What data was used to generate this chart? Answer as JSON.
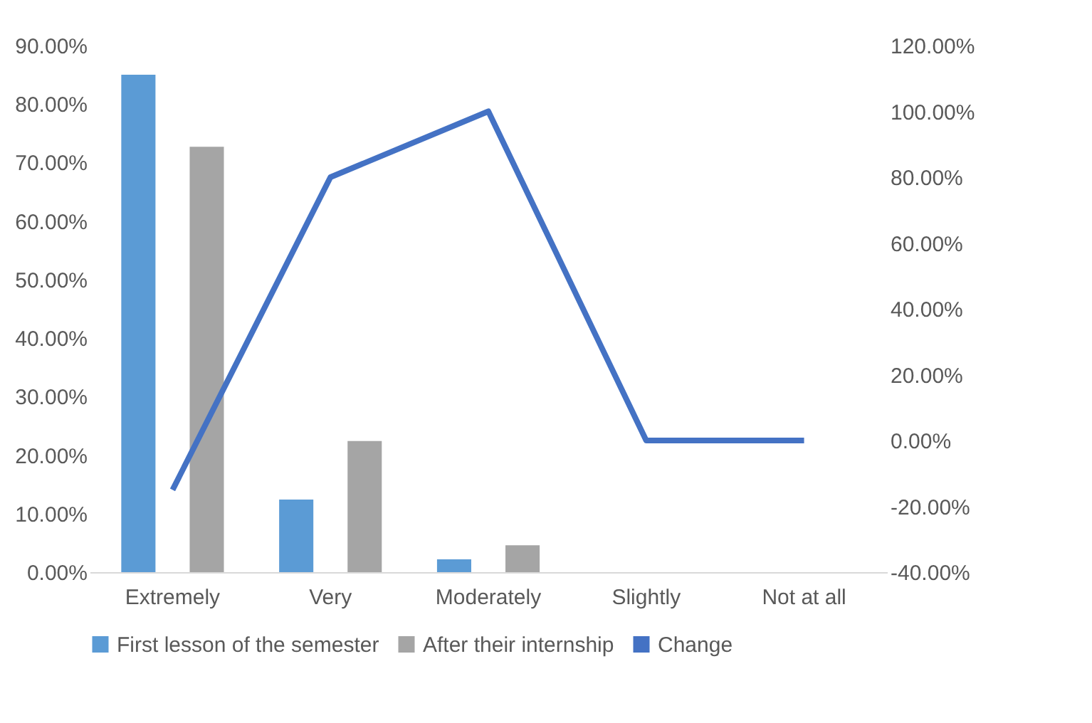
{
  "chart_data": {
    "type": "bar",
    "categories": [
      "Extremely",
      "Very",
      "Moderately",
      "Slightly",
      "Not at all"
    ],
    "series": [
      {
        "name": "First lesson of the semester",
        "color": "#5b9bd5",
        "values": [
          85,
          12.4,
          2.2,
          0,
          0
        ]
      },
      {
        "name": "After their internship",
        "color": "#a5a5a5",
        "values": [
          72.7,
          22.4,
          4.6,
          0,
          0
        ]
      },
      {
        "name": "Change",
        "color": "#4472c4",
        "type": "line",
        "axis": "y2",
        "values": [
          -15,
          80,
          100,
          0,
          0
        ]
      }
    ],
    "ylim": [
      0,
      90
    ],
    "yticks": [
      {
        "value": 0,
        "label": "0.00%"
      },
      {
        "value": 10,
        "label": "10.00%"
      },
      {
        "value": 20,
        "label": "20.00%"
      },
      {
        "value": 30,
        "label": "30.00%"
      },
      {
        "value": 40,
        "label": "40.00%"
      },
      {
        "value": 50,
        "label": "50.00%"
      },
      {
        "value": 60,
        "label": "60.00%"
      },
      {
        "value": 70,
        "label": "70.00%"
      },
      {
        "value": 80,
        "label": "80.00%"
      },
      {
        "value": 90,
        "label": "90.00%"
      }
    ],
    "y2lim": [
      -40,
      120
    ],
    "y2ticks": [
      {
        "value": -40,
        "label": "-40.00%"
      },
      {
        "value": -20,
        "label": "-20.00%"
      },
      {
        "value": 0,
        "label": "0.00%"
      },
      {
        "value": 20,
        "label": "20.00%"
      },
      {
        "value": 40,
        "label": "40.00%"
      },
      {
        "value": 60,
        "label": "60.00%"
      },
      {
        "value": 80,
        "label": "80.00%"
      },
      {
        "value": 100,
        "label": "100.00%"
      },
      {
        "value": 120,
        "label": "120.00%"
      }
    ],
    "legend": "bottom",
    "grid": false,
    "marker": "none",
    "line_style": "solid"
  }
}
